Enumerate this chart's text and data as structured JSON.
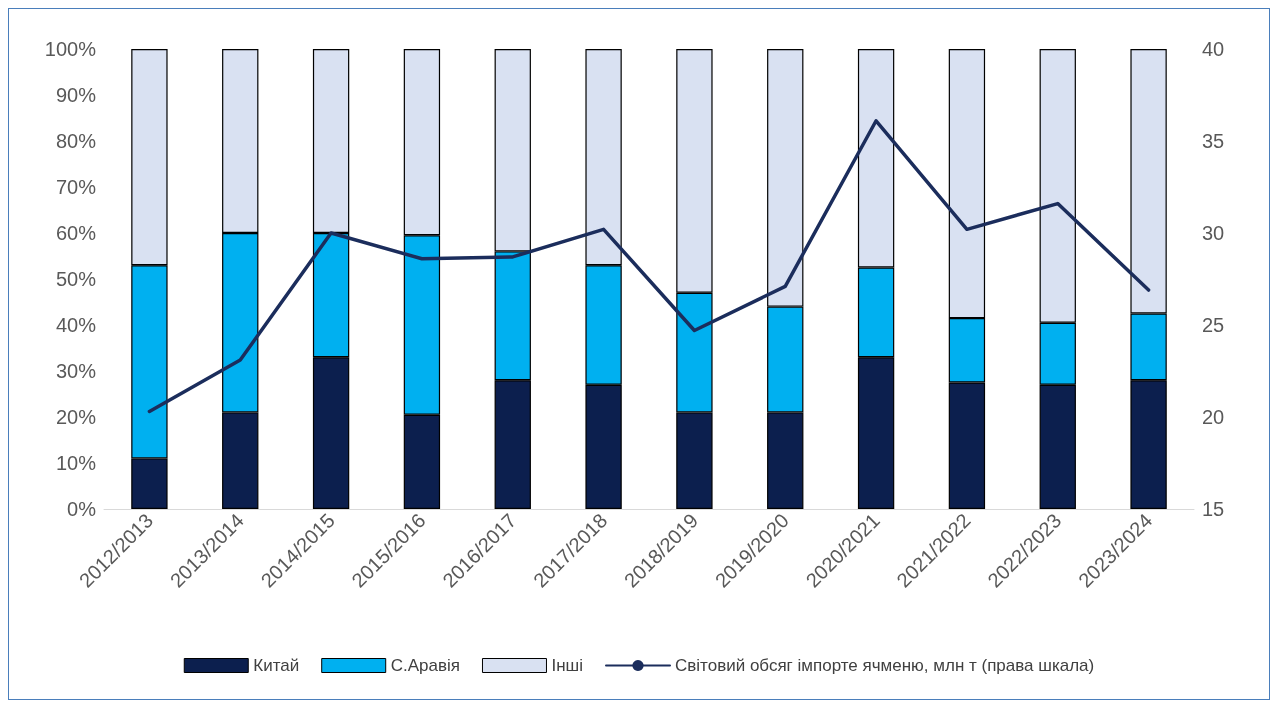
{
  "chart_data": {
    "type": "bar",
    "stacked": true,
    "categories": [
      "2012/2013",
      "2013/2014",
      "2014/2015",
      "2015/2016",
      "2016/2017",
      "2017/2018",
      "2018/2019",
      "2019/2020",
      "2020/2021",
      "2021/2022",
      "2022/2023",
      "2023/2024"
    ],
    "series": [
      {
        "name": "Китай",
        "color": "#0c1f4e",
        "values": [
          11,
          21,
          33,
          20.5,
          28,
          27,
          21,
          21,
          33,
          27.5,
          27,
          28
        ]
      },
      {
        "name": "С.Аравія",
        "color": "#00b0f0",
        "values": [
          42,
          39,
          27,
          39,
          28,
          26,
          26,
          23,
          19.5,
          14,
          13.5,
          14.5
        ]
      },
      {
        "name": "Інші",
        "color": "#d9e1f2",
        "values": [
          47,
          40,
          40,
          40.5,
          44,
          47,
          53,
          56,
          47.5,
          58.5,
          59.5,
          57.5
        ]
      },
      {
        "name": "Світовий обсяг імпорте ячменю, млн т (права шкала)",
        "type": "line",
        "axis": "y2",
        "color": "#1b2d5c",
        "values": [
          20.3,
          23.1,
          30,
          28.6,
          28.7,
          30.2,
          24.7,
          27.1,
          36.1,
          30.2,
          31.6,
          26.9
        ]
      }
    ],
    "ylim": [
      0,
      100
    ],
    "yticks": [
      {
        "value": 0,
        "label": "0%"
      },
      {
        "value": 10,
        "label": "10%"
      },
      {
        "value": 20,
        "label": "20%"
      },
      {
        "value": 30,
        "label": "30%"
      },
      {
        "value": 40,
        "label": "40%"
      },
      {
        "value": 50,
        "label": "50%"
      },
      {
        "value": 60,
        "label": "60%"
      },
      {
        "value": 70,
        "label": "70%"
      },
      {
        "value": 80,
        "label": "80%"
      },
      {
        "value": 90,
        "label": "90%"
      },
      {
        "value": 100,
        "label": "100%"
      }
    ],
    "y2lim": [
      15,
      40
    ],
    "y2ticks": [
      15,
      20,
      25,
      30,
      35,
      40
    ],
    "grid": false,
    "legend": "bottom",
    "marker": "none",
    "line_style": "solid"
  }
}
